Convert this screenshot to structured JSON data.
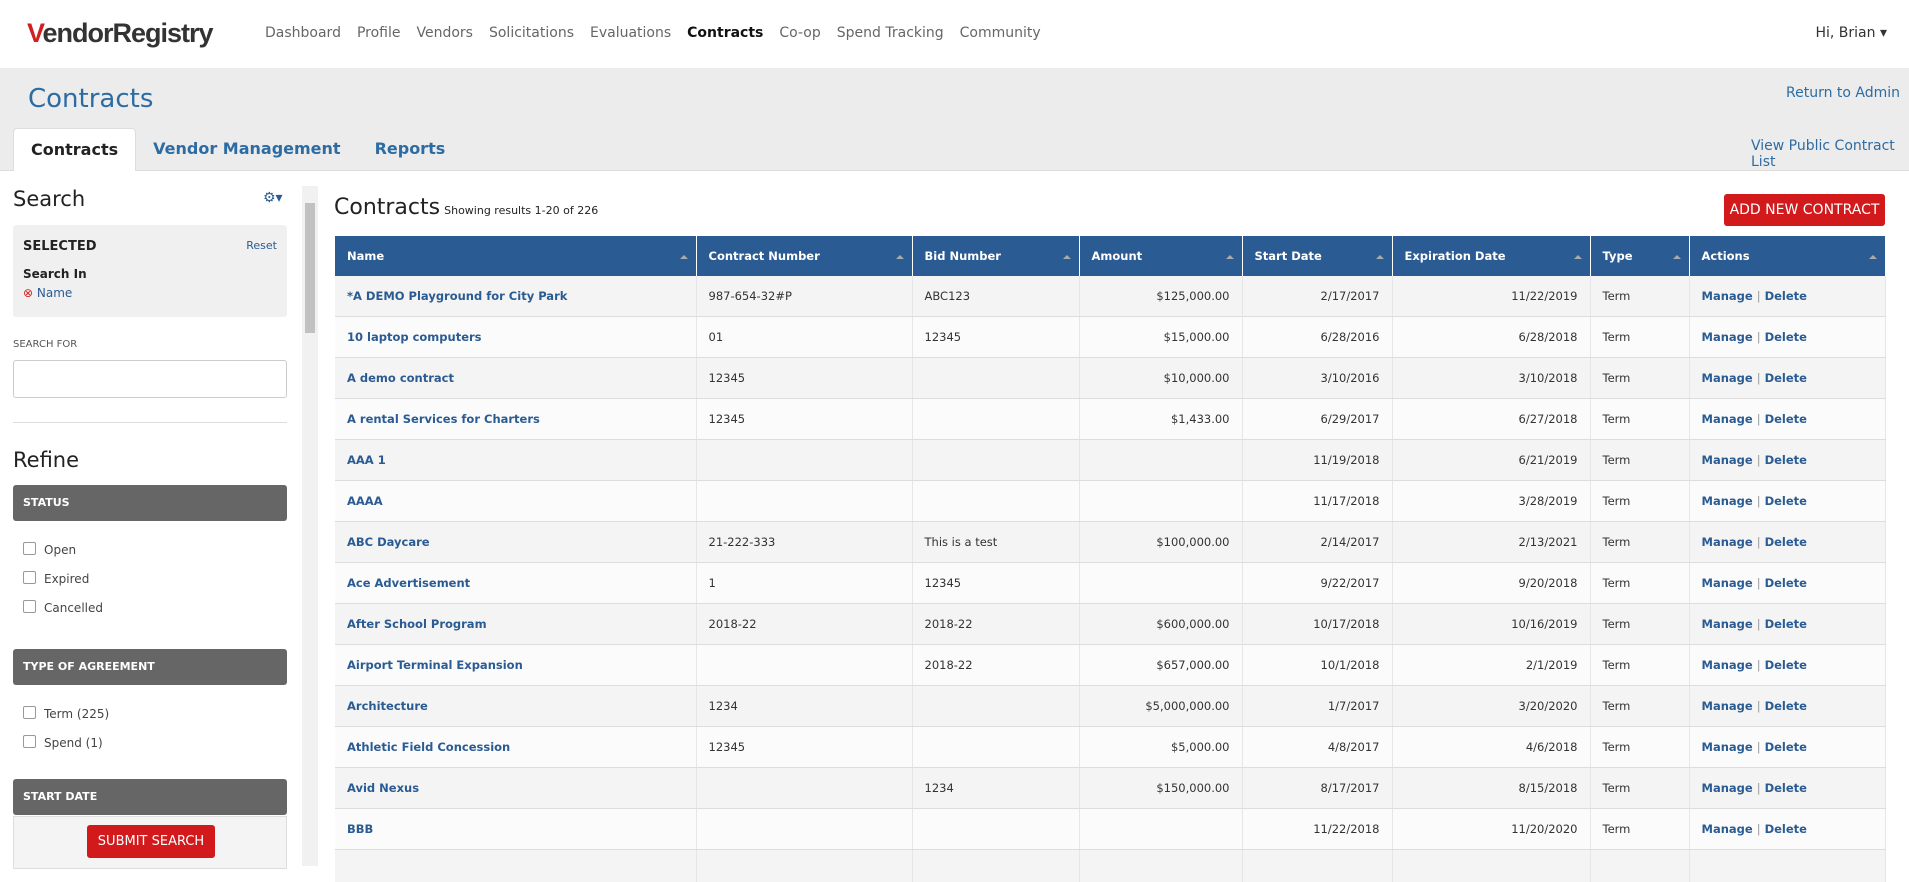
{
  "header": {
    "logo": "VendorRegistry",
    "nav": [
      "Dashboard",
      "Profile",
      "Vendors",
      "Solicitations",
      "Evaluations",
      "Contracts",
      "Co-op",
      "Spend Tracking",
      "Community"
    ],
    "active_nav": "Contracts",
    "user": "Hi, Brian"
  },
  "page": {
    "title": "Contracts",
    "return_link": "Return to Admin",
    "tabs": [
      "Contracts",
      "Vendor Management",
      "Reports"
    ],
    "active_tab": "Contracts",
    "public_link": "View Public Contract List"
  },
  "sidebar": {
    "title": "Search",
    "selected": {
      "label": "SELECTED",
      "reset": "Reset",
      "search_in": "Search In",
      "item": "Name"
    },
    "search_for": "SEARCH FOR",
    "refine": "Refine",
    "groups": [
      {
        "title": "STATUS",
        "options": [
          "Open",
          "Expired",
          "Cancelled"
        ]
      },
      {
        "title": "TYPE OF AGREEMENT",
        "options": [
          "Term (225)",
          "Spend (1)"
        ]
      },
      {
        "title": "START DATE",
        "options": []
      }
    ],
    "submit": "SUBMIT SEARCH"
  },
  "table": {
    "title": "Contracts",
    "results": "Showing results 1-20 of 226",
    "add_button": "ADD NEW CONTRACT",
    "columns": [
      "Name",
      "Contract Number",
      "Bid Number",
      "Amount",
      "Start Date",
      "Expiration Date",
      "Type",
      "Actions"
    ],
    "actions": [
      "Manage",
      "|",
      "Delete"
    ],
    "rows": [
      [
        "*A DEMO Playground for City Park",
        "987-654-32#P",
        "ABC123",
        "$125,000.00",
        "2/17/2017",
        "11/22/2019",
        "Term"
      ],
      [
        "10 laptop computers",
        "01",
        "12345",
        "$15,000.00",
        "6/28/2016",
        "6/28/2018",
        "Term"
      ],
      [
        "A demo contract",
        "12345",
        "",
        "$10,000.00",
        "3/10/2016",
        "3/10/2018",
        "Term"
      ],
      [
        "A rental Services for Charters",
        "12345",
        "",
        "$1,433.00",
        "6/29/2017",
        "6/27/2018",
        "Term"
      ],
      [
        "AAA 1",
        "",
        "",
        "",
        "11/19/2018",
        "6/21/2019",
        "Term"
      ],
      [
        "AAAA",
        "",
        "",
        "",
        "11/17/2018",
        "3/28/2019",
        "Term"
      ],
      [
        "ABC Daycare",
        "21-222-333",
        "This is a test",
        "$100,000.00",
        "2/14/2017",
        "2/13/2021",
        "Term"
      ],
      [
        "Ace Advertisement",
        "1",
        "12345",
        "",
        "9/22/2017",
        "9/20/2018",
        "Term"
      ],
      [
        "After School Program",
        "2018-22",
        "2018-22",
        "$600,000.00",
        "10/17/2018",
        "10/16/2019",
        "Term"
      ],
      [
        "Airport Terminal Expansion",
        "",
        "2018-22",
        "$657,000.00",
        "10/1/2018",
        "2/1/2019",
        "Term"
      ],
      [
        "Architecture",
        "1234",
        "",
        "$5,000,000.00",
        "1/7/2017",
        "3/20/2020",
        "Term"
      ],
      [
        "Athletic Field Concession",
        "12345",
        "",
        "$5,000.00",
        "4/8/2017",
        "4/6/2018",
        "Term"
      ],
      [
        "Avid Nexus",
        "",
        "1234",
        "$150,000.00",
        "8/17/2017",
        "8/15/2018",
        "Term"
      ],
      [
        "BBB",
        "",
        "",
        "",
        "11/22/2018",
        "11/20/2020",
        "Term"
      ]
    ]
  }
}
